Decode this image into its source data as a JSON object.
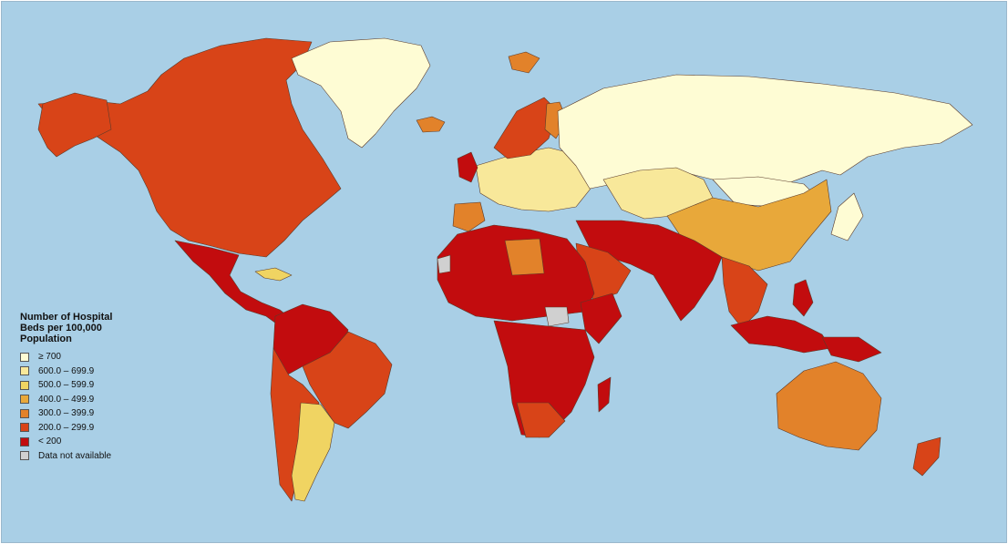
{
  "legend": {
    "title": "Number of Hospital Beds per 100,000 Population",
    "items": [
      {
        "label": "≥ 700",
        "color": "#fefcd4"
      },
      {
        "label": "600.0 – 699.9",
        "color": "#f8e89a"
      },
      {
        "label": "500.0 – 599.9",
        "color": "#f0d462"
      },
      {
        "label": "400.0 – 499.9",
        "color": "#e8a83a"
      },
      {
        "label": "300.0 – 399.9",
        "color": "#e2822a"
      },
      {
        "label": "200.0 – 299.9",
        "color": "#d84418"
      },
      {
        "label": "< 200",
        "color": "#c20c0e"
      },
      {
        "label": "Data not available",
        "color": "#d0d0d0"
      }
    ]
  },
  "colors": {
    "ocean": "#a9cfe6",
    "border": "#5a3a2a"
  }
}
